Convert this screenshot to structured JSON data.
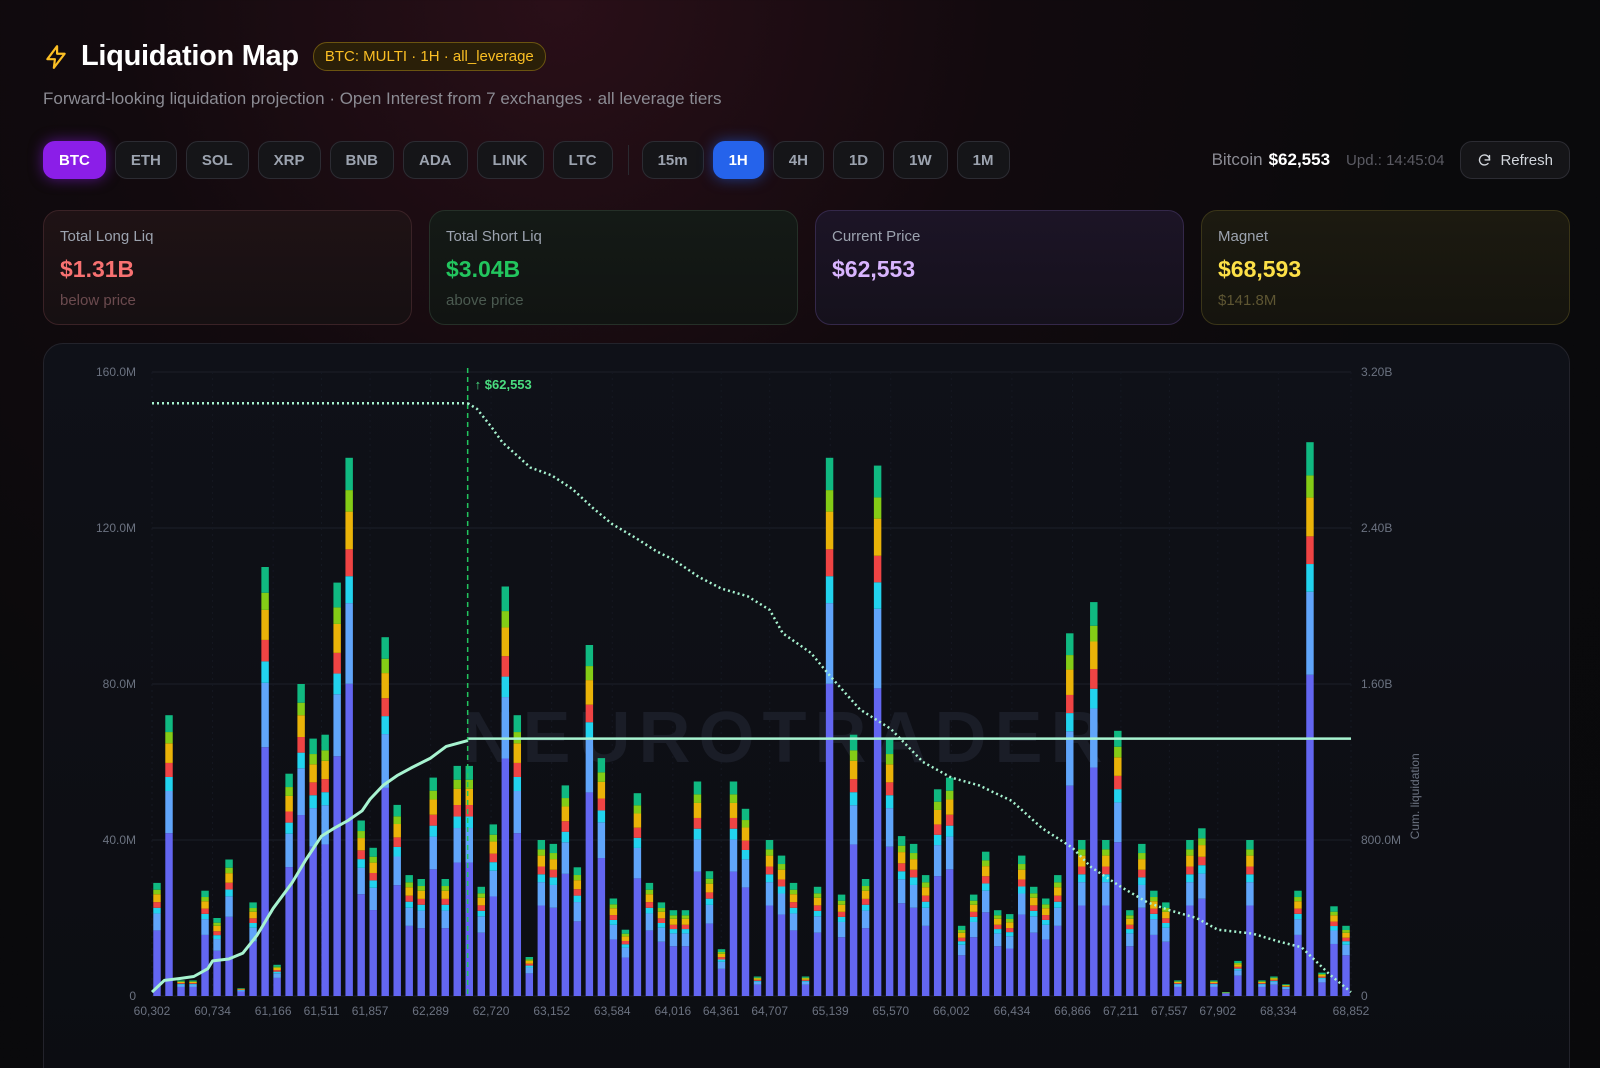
{
  "header": {
    "title": "Liquidation Map",
    "badge": "BTC: MULTI · 1H · all_leverage",
    "subtitle": "Forward-looking liquidation projection · Open Interest from 7 exchanges · all leverage tiers"
  },
  "toolbar": {
    "assets": [
      "BTC",
      "ETH",
      "SOL",
      "XRP",
      "BNB",
      "ADA",
      "LINK",
      "LTC"
    ],
    "active_asset": "BTC",
    "timeframes": [
      "15m",
      "1H",
      "4H",
      "1D",
      "1W",
      "1M"
    ],
    "active_timeframe": "1H",
    "coin_name": "Bitcoin",
    "coin_price": "$62,553",
    "updated": "Upd.: 14:45:04",
    "refresh_label": "Refresh"
  },
  "cards": {
    "long": {
      "label": "Total Long Liq",
      "value": "$1.31B",
      "sub": "below price"
    },
    "short": {
      "label": "Total Short Liq",
      "value": "$3.04B",
      "sub": "above price"
    },
    "price": {
      "label": "Current Price",
      "value": "$62,553"
    },
    "magnet": {
      "label": "Magnet",
      "value": "$68,593",
      "sub": "$141.8M"
    }
  },
  "colors": {
    "accent_purple": "#8b1ee8",
    "accent_blue": "#2563eb",
    "long_red": "#f87171",
    "short_green": "#22c55e",
    "price_violet": "#d8b4fe",
    "magnet_yellow": "#fde047",
    "stack_colors": [
      "#6366f1",
      "#60a5fa",
      "#22d3ee",
      "#ef4444",
      "#eab308",
      "#84cc16",
      "#10b981"
    ]
  },
  "chart_data": {
    "type": "bar",
    "watermark": "NEUROTRADER",
    "ylabel_right": "Cum. liquidation",
    "ylim": [
      0,
      160000000
    ],
    "ylim_right": [
      0,
      3200000000
    ],
    "y_ticks_left": [
      "0",
      "40.0M",
      "80.0M",
      "120.0M",
      "160.0M"
    ],
    "y_ticks_right": [
      "0",
      "800.0M",
      "1.60B",
      "2.40B",
      "3.20B"
    ],
    "xlim": [
      60302,
      68852
    ],
    "x_ticks": [
      "60,302",
      "60,734",
      "61,166",
      "61,511",
      "61,857",
      "62,289",
      "62,720",
      "63,152",
      "63,584",
      "64,016",
      "64,361",
      "64,707",
      "65,139",
      "65,570",
      "66,002",
      "66,434",
      "66,866",
      "67,211",
      "67,557",
      "67,902",
      "68,334",
      "68,852"
    ],
    "current_price": 62553,
    "current_price_label": "↑ $62,553",
    "magnet_level": 66000000,
    "bar_values_m": [
      29,
      72,
      4,
      4,
      27,
      20,
      35,
      2,
      24,
      110,
      8,
      57,
      80,
      66,
      67,
      106,
      138,
      45,
      38,
      92,
      49,
      31,
      30,
      56,
      30,
      59,
      59,
      28,
      44,
      105,
      72,
      10,
      40,
      39,
      54,
      33,
      90,
      61,
      25,
      17,
      52,
      29,
      24,
      22,
      22,
      55,
      32,
      12,
      55,
      48,
      5,
      40,
      36,
      29,
      5,
      28,
      138,
      26,
      67,
      30,
      136,
      66,
      41,
      39,
      31,
      53,
      56,
      18,
      26,
      37,
      22,
      21,
      36,
      28,
      25,
      31,
      93,
      40,
      101,
      40,
      68,
      22,
      39,
      27,
      24,
      4,
      40,
      43,
      4,
      1,
      9,
      40,
      4,
      5,
      3,
      27,
      142,
      6,
      23,
      18
    ],
    "cumulative_long": {
      "prices": [
        60302,
        60390,
        60500,
        60600,
        60700,
        60734,
        60850,
        60950,
        61050,
        61166,
        61300,
        61400,
        61511,
        61600,
        61700,
        61800,
        61857,
        61950,
        62050,
        62150,
        62289,
        62400,
        62553
      ],
      "values_b": [
        0.02,
        0.08,
        0.09,
        0.1,
        0.14,
        0.18,
        0.19,
        0.22,
        0.31,
        0.45,
        0.58,
        0.7,
        0.82,
        0.86,
        0.9,
        0.95,
        1.01,
        1.08,
        1.13,
        1.17,
        1.22,
        1.28,
        1.31
      ]
    },
    "cumulative_short": {
      "prices": [
        62553,
        62620,
        62720,
        62800,
        63000,
        63152,
        63300,
        63450,
        63584,
        63750,
        63900,
        64016,
        64200,
        64361,
        64550,
        64707,
        64800,
        65000,
        65139,
        65350,
        65570,
        65800,
        66002,
        66200,
        66434,
        66650,
        66866,
        67000,
        67211,
        67400,
        67557,
        67750,
        67902,
        68150,
        68334,
        68500,
        68700,
        68852
      ],
      "values_b": [
        3.04,
        3.01,
        2.92,
        2.84,
        2.71,
        2.67,
        2.6,
        2.5,
        2.42,
        2.35,
        2.28,
        2.24,
        2.15,
        2.09,
        2.05,
        1.98,
        1.86,
        1.76,
        1.64,
        1.47,
        1.37,
        1.2,
        1.12,
        1.08,
        1.0,
        0.86,
        0.76,
        0.66,
        0.56,
        0.48,
        0.44,
        0.4,
        0.34,
        0.32,
        0.28,
        0.25,
        0.11,
        0.02
      ]
    },
    "grid": true
  }
}
